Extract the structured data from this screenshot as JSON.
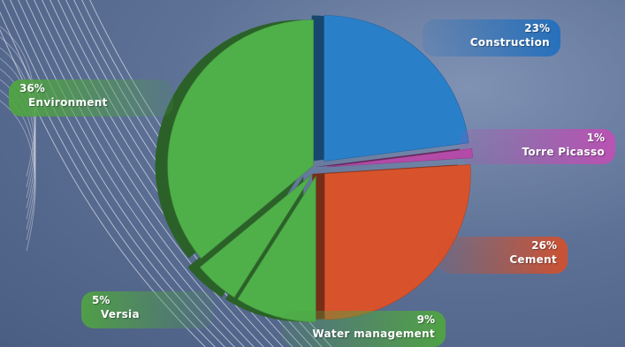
{
  "chart_data": {
    "type": "pie",
    "title": "",
    "slices": [
      {
        "label": "Construction",
        "pct_label": "23%",
        "value": 23,
        "color": "#2a7fc9"
      },
      {
        "label": "Torre Picasso",
        "pct_label": "1%",
        "value": 1,
        "color": "#b44ba8"
      },
      {
        "label": "Cement",
        "pct_label": "26%",
        "value": 26,
        "color": "#d8532c"
      },
      {
        "label": "Water management",
        "pct_label": "9%",
        "value": 9,
        "color": "#4fb04a"
      },
      {
        "label": "Versia",
        "pct_label": "5%",
        "value": 5,
        "color": "#4fb04a"
      },
      {
        "label": "Environment",
        "pct_label": "36%",
        "value": 36,
        "color": "#4fb04a"
      }
    ]
  }
}
